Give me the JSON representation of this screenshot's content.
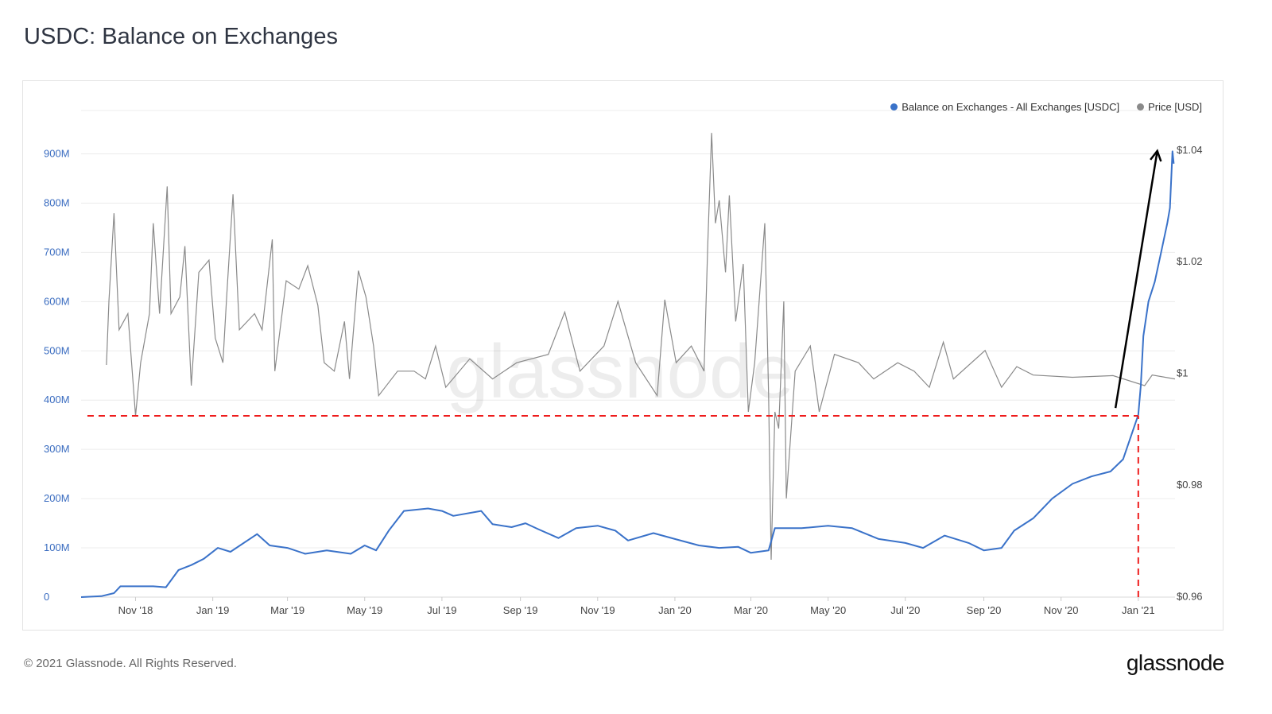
{
  "title": "USDC: Balance on Exchanges",
  "footer": "© 2021 Glassnode. All Rights Reserved.",
  "logo": "glassnode",
  "watermark": "glassnode",
  "colors": {
    "balance": "#3a72c9",
    "price": "#8a8a8a",
    "annotation_red": "#ee1c1c",
    "annotation_arrow": "#000000",
    "left_axis": "#3a6cc0"
  },
  "chart_data": {
    "type": "line",
    "title": "USDC: Balance on Exchanges",
    "x_unit": "days since 2018-11-01",
    "x_range": [
      -43,
      821
    ],
    "x_ticks": [
      {
        "x": 0,
        "label": "Nov '18"
      },
      {
        "x": 61,
        "label": "Jan '19"
      },
      {
        "x": 120,
        "label": "Mar '19"
      },
      {
        "x": 181,
        "label": "May '19"
      },
      {
        "x": 242,
        "label": "Jul '19"
      },
      {
        "x": 304,
        "label": "Sep '19"
      },
      {
        "x": 365,
        "label": "Nov '19"
      },
      {
        "x": 426,
        "label": "Jan '20"
      },
      {
        "x": 486,
        "label": "Mar '20"
      },
      {
        "x": 547,
        "label": "May '20"
      },
      {
        "x": 608,
        "label": "Jul '20"
      },
      {
        "x": 670,
        "label": "Sep '20"
      },
      {
        "x": 731,
        "label": "Nov '20"
      },
      {
        "x": 792,
        "label": "Jan '21"
      }
    ],
    "y_left": {
      "range": [
        0,
        988
      ],
      "unit": "M USDC",
      "ticks": [
        {
          "v": 0,
          "label": "0"
        },
        {
          "v": 100,
          "label": "100M"
        },
        {
          "v": 200,
          "label": "200M"
        },
        {
          "v": 300,
          "label": "300M"
        },
        {
          "v": 400,
          "label": "400M"
        },
        {
          "v": 500,
          "label": "500M"
        },
        {
          "v": 600,
          "label": "600M"
        },
        {
          "v": 700,
          "label": "700M"
        },
        {
          "v": 800,
          "label": "800M"
        },
        {
          "v": 900,
          "label": "900M"
        }
      ]
    },
    "y_right": {
      "range": [
        0.9599,
        1.0471
      ],
      "unit": "USD",
      "ticks": [
        {
          "v": 0.96,
          "label": "$0.96"
        },
        {
          "v": 0.98,
          "label": "$0.98"
        },
        {
          "v": 1.0,
          "label": "$1"
        },
        {
          "v": 1.02,
          "label": "$1.02"
        },
        {
          "v": 1.04,
          "label": "$1.04"
        }
      ]
    },
    "grid": true,
    "legend_position": "top-right",
    "series": [
      {
        "name": "Balance on Exchanges - All Exchanges [USDC]",
        "axis": "left",
        "points": [
          [
            -43,
            0
          ],
          [
            -27,
            2
          ],
          [
            -17,
            8
          ],
          [
            -12,
            22
          ],
          [
            14,
            22
          ],
          [
            24,
            20
          ],
          [
            34,
            55
          ],
          [
            44,
            65
          ],
          [
            54,
            78
          ],
          [
            65,
            100
          ],
          [
            75,
            92
          ],
          [
            96,
            128
          ],
          [
            106,
            105
          ],
          [
            120,
            100
          ],
          [
            134,
            88
          ],
          [
            151,
            95
          ],
          [
            170,
            88
          ],
          [
            181,
            105
          ],
          [
            190,
            95
          ],
          [
            200,
            135
          ],
          [
            212,
            175
          ],
          [
            231,
            180
          ],
          [
            242,
            175
          ],
          [
            251,
            165
          ],
          [
            273,
            175
          ],
          [
            282,
            148
          ],
          [
            297,
            142
          ],
          [
            308,
            150
          ],
          [
            318,
            138
          ],
          [
            334,
            120
          ],
          [
            348,
            140
          ],
          [
            365,
            145
          ],
          [
            379,
            135
          ],
          [
            389,
            115
          ],
          [
            409,
            130
          ],
          [
            426,
            118
          ],
          [
            445,
            105
          ],
          [
            461,
            100
          ],
          [
            476,
            102
          ],
          [
            486,
            90
          ],
          [
            500,
            95
          ],
          [
            505,
            140
          ],
          [
            526,
            140
          ],
          [
            547,
            145
          ],
          [
            566,
            140
          ],
          [
            587,
            118
          ],
          [
            608,
            110
          ],
          [
            622,
            100
          ],
          [
            639,
            125
          ],
          [
            658,
            110
          ],
          [
            670,
            95
          ],
          [
            684,
            100
          ],
          [
            694,
            135
          ],
          [
            709,
            160
          ],
          [
            724,
            200
          ],
          [
            740,
            230
          ],
          [
            755,
            245
          ],
          [
            770,
            255
          ],
          [
            780,
            280
          ],
          [
            788,
            340
          ],
          [
            792,
            370
          ],
          [
            794,
            430
          ],
          [
            796,
            530
          ],
          [
            800,
            600
          ],
          [
            805,
            640
          ],
          [
            810,
            700
          ],
          [
            815,
            760
          ],
          [
            817,
            790
          ],
          [
            819,
            905
          ],
          [
            820,
            880
          ]
        ]
      },
      {
        "name": "Price [USD]",
        "axis": "right",
        "points": [
          [
            -23,
            1.0015
          ],
          [
            -21,
            1.0129
          ],
          [
            -17,
            1.0287
          ],
          [
            -13,
            1.0078
          ],
          [
            -6,
            1.0107
          ],
          [
            0,
            0.9924
          ],
          [
            4,
            1.0019
          ],
          [
            11,
            1.0107
          ],
          [
            14,
            1.0269
          ],
          [
            19,
            1.0107
          ],
          [
            25,
            1.0335
          ],
          [
            28,
            1.0107
          ],
          [
            35,
            1.0137
          ],
          [
            39,
            1.0228
          ],
          [
            44,
            0.9978
          ],
          [
            50,
            1.0181
          ],
          [
            58,
            1.0203
          ],
          [
            63,
            1.0063
          ],
          [
            69,
            1.0019
          ],
          [
            72,
            1.0137
          ],
          [
            77,
            1.0321
          ],
          [
            82,
            1.0078
          ],
          [
            94,
            1.0107
          ],
          [
            100,
            1.0078
          ],
          [
            108,
            1.024
          ],
          [
            110,
            1.0004
          ],
          [
            119,
            1.0166
          ],
          [
            129,
            1.0151
          ],
          [
            136,
            1.0193
          ],
          [
            144,
            1.0122
          ],
          [
            149,
            1.0019
          ],
          [
            157,
            1.0004
          ],
          [
            165,
            1.0093
          ],
          [
            169,
            0.999
          ],
          [
            176,
            1.0184
          ],
          [
            182,
            1.0137
          ],
          [
            188,
            1.0049
          ],
          [
            192,
            0.996
          ],
          [
            207,
            1.0004
          ],
          [
            220,
            1.0004
          ],
          [
            229,
            0.999
          ],
          [
            237,
            1.0049
          ],
          [
            245,
            0.9975
          ],
          [
            264,
            1.0026
          ],
          [
            282,
            0.999
          ],
          [
            301,
            1.0019
          ],
          [
            326,
            1.0034
          ],
          [
            339,
            1.011
          ],
          [
            351,
            1.0004
          ],
          [
            370,
            1.0049
          ],
          [
            381,
            1.0129
          ],
          [
            395,
            1.0019
          ],
          [
            412,
            0.996
          ],
          [
            418,
            1.0132
          ],
          [
            427,
            1.0019
          ],
          [
            439,
            1.0049
          ],
          [
            449,
            1.0004
          ],
          [
            452,
            1.0232
          ],
          [
            455,
            1.0431
          ],
          [
            458,
            1.0269
          ],
          [
            461,
            1.031
          ],
          [
            466,
            1.0181
          ],
          [
            469,
            1.0319
          ],
          [
            474,
            1.0093
          ],
          [
            480,
            1.0196
          ],
          [
            484,
            0.9931
          ],
          [
            489,
            1.0019
          ],
          [
            497,
            1.0269
          ],
          [
            500,
            0.996
          ],
          [
            502,
            0.9666
          ],
          [
            505,
            0.9931
          ],
          [
            508,
            0.9901
          ],
          [
            512,
            1.0129
          ],
          [
            514,
            0.9776
          ],
          [
            521,
            1.0004
          ],
          [
            533,
            1.0049
          ],
          [
            540,
            0.9931
          ],
          [
            552,
            1.0034
          ],
          [
            571,
            1.0019
          ],
          [
            583,
            0.999
          ],
          [
            602,
            1.0019
          ],
          [
            615,
            1.0004
          ],
          [
            627,
            0.9975
          ],
          [
            638,
            1.0056
          ],
          [
            646,
            0.999
          ],
          [
            671,
            1.0041
          ],
          [
            684,
            0.9975
          ],
          [
            696,
            1.0012
          ],
          [
            709,
            0.9997
          ],
          [
            740,
            0.9993
          ],
          [
            772,
            0.9996
          ],
          [
            797,
            0.9978
          ],
          [
            803,
            0.9997
          ],
          [
            821,
            0.999
          ]
        ]
      }
    ],
    "annotations": [
      {
        "type": "dashed-horizontal",
        "color": "red",
        "from_x": -38,
        "to_x": 792,
        "y": 368,
        "axis": "left"
      },
      {
        "type": "dashed-vertical",
        "color": "red",
        "x": 792,
        "from_y": 0,
        "to_y": 368,
        "axis": "left"
      },
      {
        "type": "arrow",
        "color": "black",
        "from": [
          774,
          384
        ],
        "to": [
          807,
          906
        ],
        "axis": "left"
      }
    ]
  }
}
